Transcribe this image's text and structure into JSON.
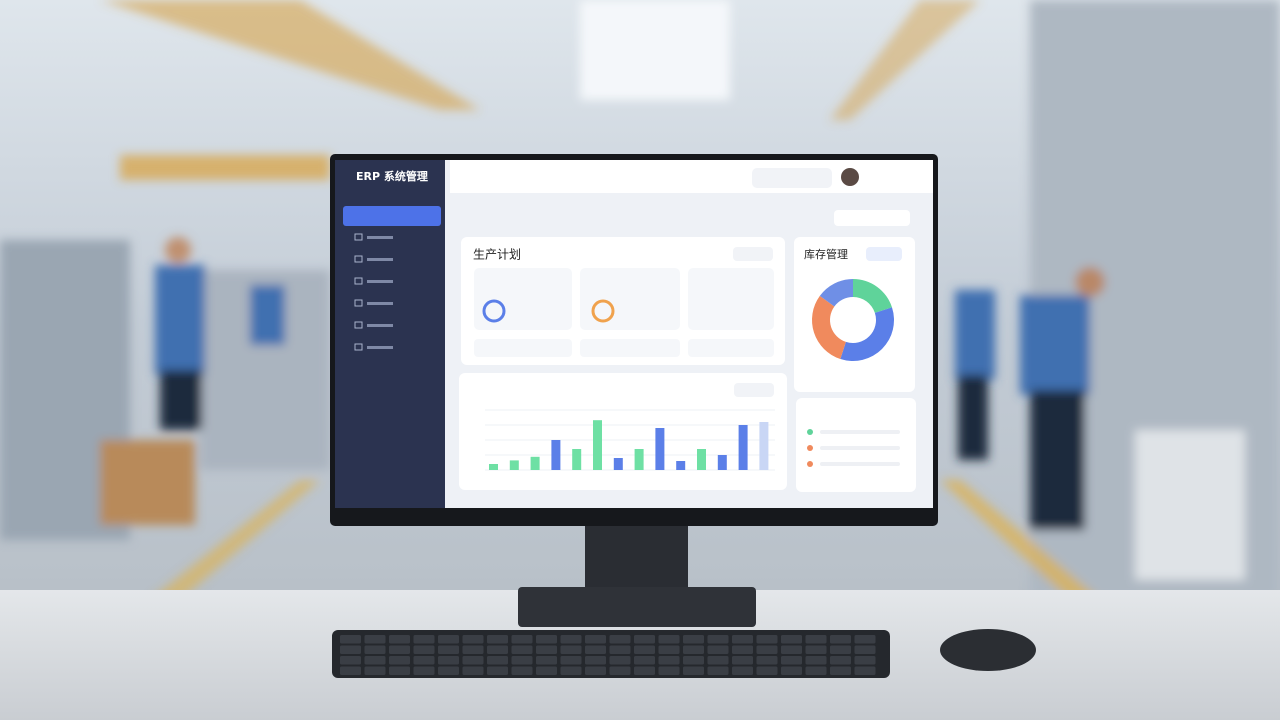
{
  "app_title": "ERP 系统管理",
  "production_card": {
    "title": "生产计划"
  },
  "inventory_card": {
    "title": "库存管理",
    "chart_data": {
      "type": "pie",
      "values": [
        20,
        35,
        30,
        15
      ],
      "colors": [
        "#5fd39a",
        "#5b7fe8",
        "#f08a5d",
        "#6f8fe6"
      ]
    }
  },
  "trend_card": {
    "chart_data": {
      "type": "bar",
      "values": [
        10,
        16,
        22,
        50,
        35,
        83,
        20,
        35,
        70,
        15,
        35,
        25,
        75,
        80
      ],
      "colors": [
        "#6ee0a4",
        "#6ee0a4",
        "#6ee0a4",
        "#5b7fe8",
        "#6ee0a4",
        "#6ee0a4",
        "#5b7fe8",
        "#6ee0a4",
        "#5b7fe8",
        "#5b7fe8",
        "#6ee0a4",
        "#5b7fe8",
        "#5b7fe8",
        "#c9d6f5"
      ],
      "ylim": [
        0,
        100
      ]
    }
  }
}
